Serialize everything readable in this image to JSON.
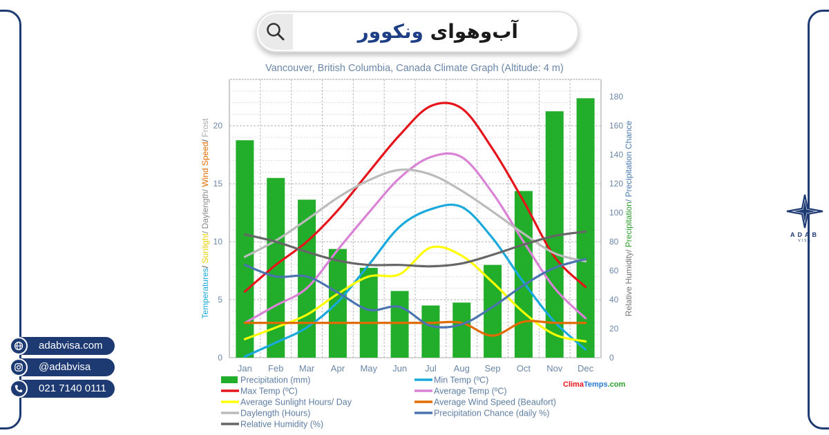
{
  "header": {
    "title_black": "آب‌وهوای",
    "title_blue": "ونکوور"
  },
  "contacts": [
    {
      "icon": "globe-icon",
      "text": "adabvisa.com"
    },
    {
      "icon": "instagram-icon",
      "text": "@adabvisa"
    },
    {
      "icon": "phone-icon",
      "text": "021 7140 0111"
    }
  ],
  "logo": {
    "brand": "ADAB",
    "sub": "VISA"
  },
  "chart_data": {
    "type": "bar+line",
    "title": "Vancouver, British Columbia, Canada Climate Graph (Altitude: 4 m)",
    "categories": [
      "Jan",
      "Feb",
      "Mar",
      "Apr",
      "May",
      "Jun",
      "Jul",
      "Aug",
      "Sep",
      "Oct",
      "Nov",
      "Dec"
    ],
    "ylabel_left_parts": [
      {
        "text": "Temperatures",
        "color": "#19a9dc"
      },
      {
        "text": "/ ",
        "color": "#555555"
      },
      {
        "text": "Sunlight",
        "color": "#e8d000"
      },
      {
        "text": "/ Daylength/ ",
        "color": "#888888"
      },
      {
        "text": "Wind Speed",
        "color": "#e06b00"
      },
      {
        "text": "/ ",
        "color": "#555555"
      },
      {
        "text": "Frost",
        "color": "#aaaaaa"
      }
    ],
    "ylabel_right_parts": [
      {
        "text": "Relative Humidity/ ",
        "color": "#777777"
      },
      {
        "text": "Precipitation",
        "color": "#2a9d2a"
      },
      {
        "text": "/ Precipitation Chance",
        "color": "#4a7ab0"
      }
    ],
    "ylim_left": [
      0,
      24
    ],
    "yticks_left": [
      0,
      5,
      10,
      15,
      20
    ],
    "ylim_right": [
      0,
      192
    ],
    "yticks_right": [
      0,
      20,
      40,
      60,
      80,
      100,
      120,
      140,
      160,
      180
    ],
    "bars": {
      "name": "Precipitation (mm)",
      "color": "#22ad2a",
      "values": [
        150,
        124,
        109,
        75,
        62,
        46,
        36,
        38,
        64,
        115,
        170,
        179
      ]
    },
    "series": [
      {
        "name": "Min Temp (°C)",
        "color": "#19a9dc",
        "axis": "left",
        "values": [
          0.1,
          1.3,
          2.6,
          4.8,
          8.0,
          11.3,
          12.8,
          13.0,
          10.3,
          6.5,
          3.1,
          0.7
        ]
      },
      {
        "name": "Max Temp (°C)",
        "color": "#e5141a",
        "axis": "left",
        "values": [
          5.7,
          8.0,
          10.0,
          12.7,
          16.0,
          19.2,
          21.7,
          21.5,
          18.0,
          13.5,
          8.7,
          6.1
        ]
      },
      {
        "name": "Average Temp (°C)",
        "color": "#d982d6",
        "axis": "left",
        "values": [
          3.0,
          4.5,
          6.0,
          9.3,
          12.5,
          15.5,
          17.3,
          17.3,
          14.2,
          10.0,
          6.0,
          3.4
        ]
      },
      {
        "name": "Average Sunlight Hours/ Day",
        "color": "#ffff00",
        "axis": "left",
        "values": [
          1.6,
          2.6,
          3.7,
          5.5,
          7.0,
          7.2,
          9.5,
          8.8,
          6.5,
          3.9,
          2.0,
          1.4
        ]
      },
      {
        "name": "Average Wind Speed (Beaufort)",
        "color": "#e06b00",
        "axis": "left",
        "values": [
          3.0,
          3.0,
          3.0,
          3.0,
          3.0,
          3.0,
          3.0,
          3.0,
          1.9,
          3.1,
          3.0,
          3.0
        ]
      },
      {
        "name": "Daylength (Hours)",
        "color": "#bbbbbb",
        "axis": "left",
        "values": [
          8.7,
          10.1,
          11.9,
          13.8,
          15.3,
          16.2,
          15.8,
          14.4,
          12.6,
          10.7,
          9.0,
          8.3
        ]
      },
      {
        "name": "Precipitation Chance (daily %)",
        "color": "#4a74b0",
        "axis": "right",
        "values": [
          64,
          56,
          56,
          45,
          33,
          35,
          22,
          23,
          35,
          50,
          62,
          68
        ]
      },
      {
        "name": "Relative Humidity (%)",
        "color": "#666666",
        "axis": "right",
        "values": [
          85,
          80,
          73,
          67,
          64,
          64,
          63,
          65,
          71,
          78,
          84,
          87
        ]
      }
    ],
    "legend": [
      {
        "label": "Precipitation (mm)",
        "color": "#22ad2a",
        "shape": "rect"
      },
      {
        "label": "Min Temp (ºC)",
        "color": "#19a9dc",
        "shape": "line"
      },
      {
        "label": "Max Temp (ºC)",
        "color": "#e5141a",
        "shape": "line"
      },
      {
        "label": "Average Temp (ºC)",
        "color": "#d982d6",
        "shape": "line"
      },
      {
        "label": "Average Sunlight Hours/ Day",
        "color": "#ffff00",
        "shape": "line"
      },
      {
        "label": "Average Wind Speed (Beaufort)",
        "color": "#e06b00",
        "shape": "line"
      },
      {
        "label": "Daylength (Hours)",
        "color": "#bbbbbb",
        "shape": "line"
      },
      {
        "label": "Precipitation Chance (daily %)",
        "color": "#4a74b0",
        "shape": "line"
      },
      {
        "label": "Relative Humidity (%)",
        "color": "#666666",
        "shape": "line"
      }
    ],
    "watermark_parts": [
      {
        "text": "Clima",
        "color": "#e5141a"
      },
      {
        "text": "Temps",
        "color": "#2a7ad0"
      },
      {
        "text": ".com",
        "color": "#2a9d2a"
      }
    ],
    "grid": true
  }
}
